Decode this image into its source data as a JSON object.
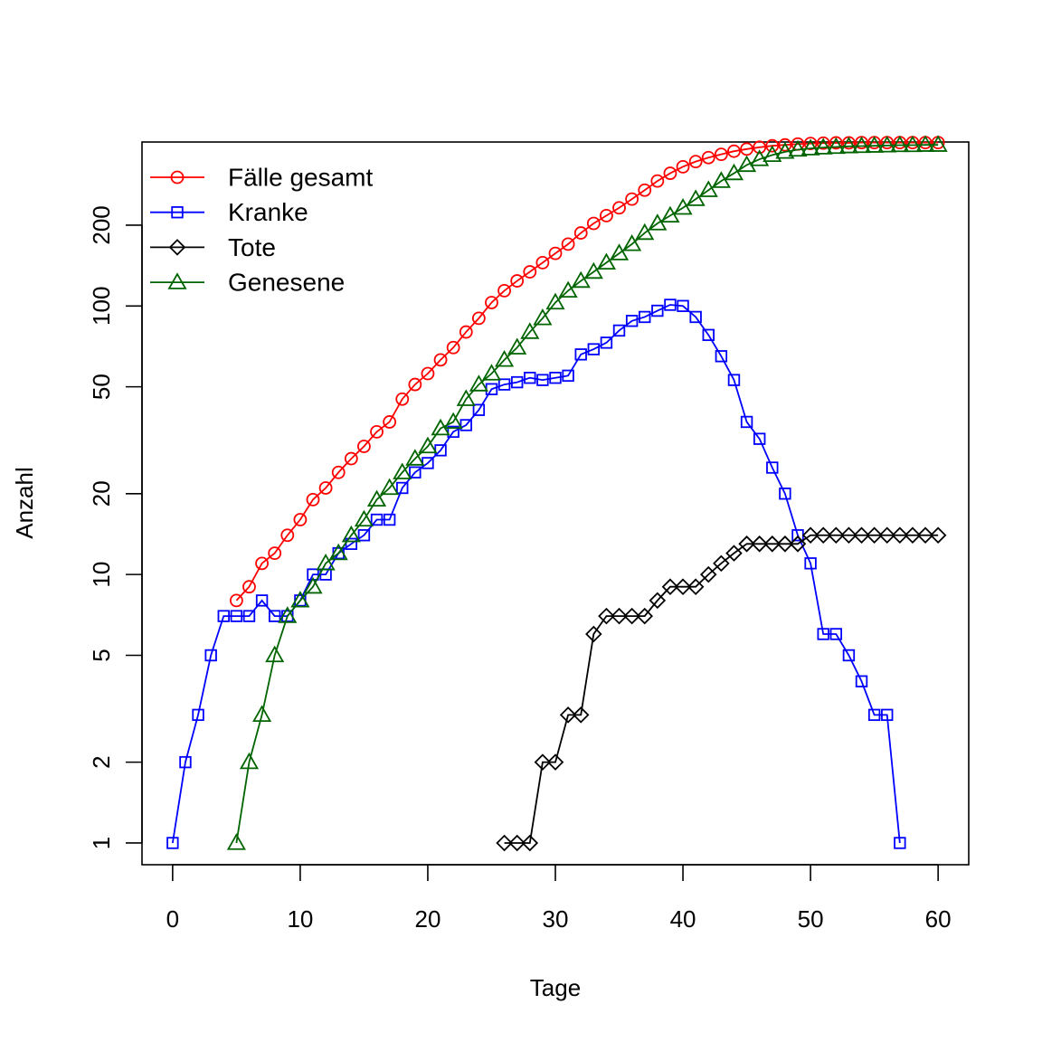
{
  "chart_data": {
    "type": "line",
    "title": "",
    "xlabel": "Tage",
    "ylabel": "Anzahl",
    "xlim": [
      -2.4,
      62.4
    ],
    "ylim": [
      0.83,
      408
    ],
    "y_scale": "log",
    "grid": false,
    "legend_position": "top-left",
    "x_ticks": [
      0,
      10,
      20,
      30,
      40,
      50,
      60
    ],
    "y_ticks": [
      1,
      2,
      5,
      10,
      20,
      50,
      100,
      200
    ],
    "series": [
      {
        "name": "Fälle gesamt",
        "color": "#ff0000",
        "marker": "circle",
        "x": [
          5,
          6,
          7,
          8,
          9,
          10,
          11,
          12,
          13,
          14,
          15,
          16,
          17,
          18,
          19,
          20,
          21,
          22,
          23,
          24,
          25,
          26,
          27,
          28,
          29,
          30,
          31,
          32,
          33,
          34,
          35,
          36,
          37,
          38,
          39,
          40,
          41,
          42,
          43,
          44,
          45,
          46,
          47,
          48,
          49,
          50,
          51,
          52,
          53,
          54,
          55,
          56,
          57,
          58,
          59,
          60
        ],
        "y": [
          8,
          9,
          11,
          12,
          14,
          16,
          19,
          21,
          24,
          27,
          30,
          34,
          37,
          45,
          51,
          56,
          63,
          70,
          80,
          90,
          103,
          114,
          124,
          134,
          145,
          157,
          170,
          187,
          203,
          217,
          232,
          250,
          270,
          292,
          312,
          330,
          345,
          357,
          367,
          377,
          384,
          390,
          395,
          398,
          401,
          403,
          404,
          405,
          405,
          406,
          406,
          406,
          406,
          406,
          406,
          406
        ]
      },
      {
        "name": "Kranke",
        "color": "#0000ff",
        "marker": "square",
        "x": [
          0,
          1,
          2,
          3,
          4,
          5,
          6,
          7,
          8,
          9,
          10,
          11,
          12,
          13,
          14,
          15,
          16,
          17,
          18,
          19,
          20,
          21,
          22,
          23,
          24,
          25,
          26,
          27,
          28,
          29,
          30,
          31,
          32,
          33,
          34,
          35,
          36,
          37,
          38,
          39,
          40,
          41,
          42,
          43,
          44,
          45,
          46,
          47,
          48,
          49,
          50,
          51,
          52,
          53,
          54,
          55,
          56,
          57
        ],
        "y": [
          1,
          2,
          3,
          5,
          7,
          7,
          7,
          8,
          7,
          7,
          8,
          10,
          10,
          12,
          13,
          14,
          16,
          16,
          21,
          24,
          26,
          29,
          34,
          36,
          41,
          49,
          51,
          52,
          54,
          53,
          54,
          55,
          66,
          69,
          73,
          81,
          88,
          91,
          96,
          101,
          100,
          91,
          78,
          65,
          53,
          37,
          32,
          25,
          20,
          14,
          11,
          6,
          6,
          5,
          4,
          3,
          3,
          1
        ]
      },
      {
        "name": "Tote",
        "color": "#000000",
        "marker": "diamond",
        "x": [
          26,
          27,
          28,
          29,
          30,
          31,
          32,
          33,
          34,
          35,
          36,
          37,
          38,
          39,
          40,
          41,
          42,
          43,
          44,
          45,
          46,
          47,
          48,
          49,
          50,
          51,
          52,
          53,
          54,
          55,
          56,
          57,
          58,
          59,
          60
        ],
        "y": [
          1,
          1,
          1,
          2,
          2,
          3,
          3,
          6,
          7,
          7,
          7,
          7,
          8,
          9,
          9,
          9,
          10,
          11,
          12,
          13,
          13,
          13,
          13,
          13,
          14,
          14,
          14,
          14,
          14,
          14,
          14,
          14,
          14,
          14,
          14
        ]
      },
      {
        "name": "Genesene",
        "color": "#006400",
        "marker": "triangle",
        "x": [
          5,
          6,
          7,
          8,
          9,
          10,
          11,
          12,
          13,
          14,
          15,
          16,
          17,
          18,
          19,
          20,
          21,
          22,
          23,
          24,
          25,
          26,
          27,
          28,
          29,
          30,
          31,
          32,
          33,
          34,
          35,
          36,
          37,
          38,
          39,
          40,
          41,
          42,
          43,
          44,
          45,
          46,
          47,
          48,
          49,
          50,
          51,
          52,
          53,
          54,
          55,
          56,
          57,
          58,
          59,
          60
        ],
        "y": [
          1,
          2,
          3,
          5,
          7,
          8,
          9,
          11,
          12,
          14,
          16,
          19,
          21,
          24,
          27,
          30,
          35,
          37,
          45,
          51,
          56,
          63,
          70,
          80,
          90,
          103,
          114,
          124,
          134,
          145,
          157,
          170,
          187,
          203,
          217,
          232,
          250,
          270,
          292,
          312,
          335,
          352,
          365,
          375,
          382,
          386,
          389,
          391,
          393,
          394,
          395,
          396,
          397,
          397,
          398,
          398
        ]
      }
    ]
  }
}
